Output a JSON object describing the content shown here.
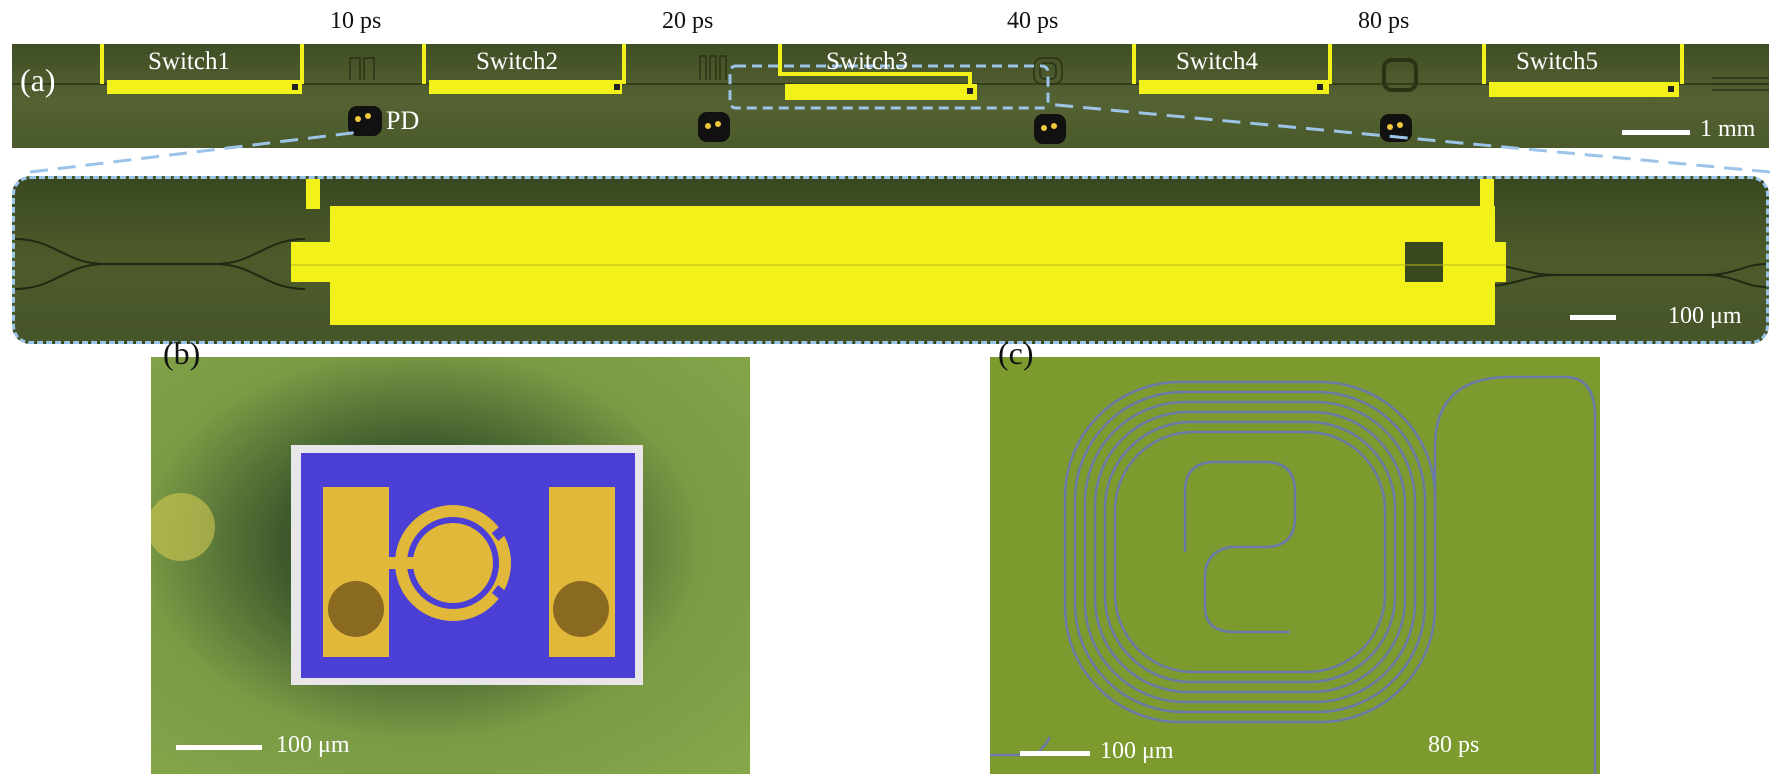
{
  "figure": {
    "delays": [
      "10 ps",
      "20 ps",
      "40 ps",
      "80 ps"
    ],
    "panel_a": {
      "label": "(a)",
      "switches": [
        "Switch1",
        "Switch2",
        "Switch3",
        "Switch4",
        "Switch5"
      ],
      "pd_label": "PD",
      "scale_label": "1 mm"
    },
    "inset": {
      "scale_label": "100 μm"
    },
    "panel_b": {
      "label": "(b)",
      "scale_label": "100 μm"
    },
    "panel_c": {
      "label": "(c)",
      "scale_label": "100 μm",
      "delay_label": "80 ps"
    },
    "colors": {
      "chip_green": "#4a5a2a",
      "electrode_yellow": "#f2f21a",
      "dashed_blue": "#9cc3e8",
      "pd_blue": "#4b3fd6",
      "pd_gold": "#e2b83a",
      "spiral_bg": "#7c9a2e"
    }
  }
}
